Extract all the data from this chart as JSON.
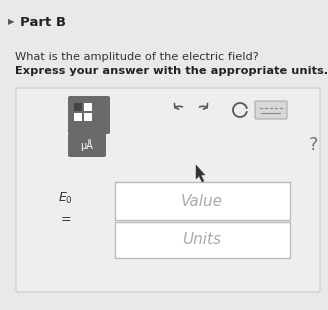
{
  "page_bg": "#e8e8e8",
  "content_bg": "#f5f5f5",
  "title": "Part B",
  "question_line1": "What is the amplitude of the electric field?",
  "question_line2": "Express your answer with the appropriate units.",
  "field1_text": "Value",
  "field2_text": "Units",
  "toolbar_bg": "#e0e0e0",
  "input_bg": "#ffffff",
  "question_mark": "?",
  "title_color": "#222222",
  "text_color": "#333333",
  "bold_text_color": "#222222",
  "placeholder_color": "#999999",
  "icon_color": "#555555",
  "border_color": "#cccccc"
}
